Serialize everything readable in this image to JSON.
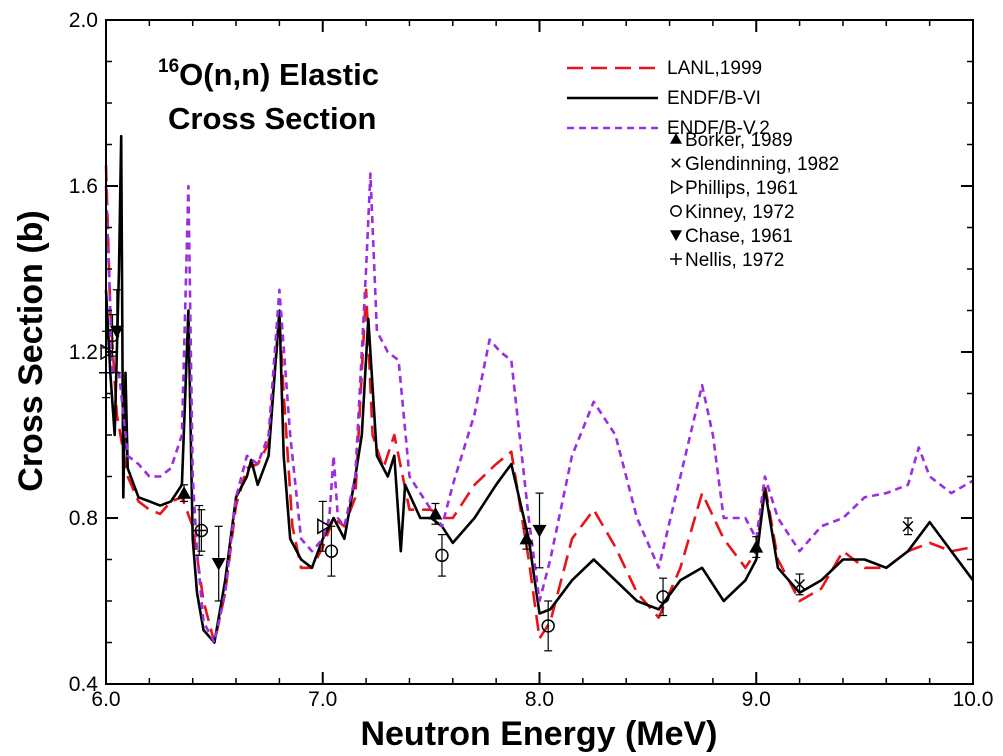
{
  "chart_data": {
    "type": "line",
    "title_line1_sup": "16",
    "title_line1": "O(n,n) Elastic",
    "title_line2": "Cross Section",
    "xlabel": "Neutron Energy (MeV)",
    "ylabel": "Cross Section (b)",
    "xlim": [
      6.0,
      10.0
    ],
    "ylim": [
      0.4,
      2.0
    ],
    "x_ticks": [
      "6.0",
      "7.0",
      "8.0",
      "9.0",
      "10.0"
    ],
    "y_ticks": [
      "0.4",
      "0.8",
      "1.2",
      "1.6",
      "2.0"
    ],
    "legend_position": "top-right",
    "series": [
      {
        "name": "LANL,1999",
        "color": "#e8141a",
        "style": "dashed",
        "x": [
          6.0,
          6.02,
          6.05,
          6.1,
          6.15,
          6.2,
          6.25,
          6.3,
          6.35,
          6.4,
          6.45,
          6.5,
          6.55,
          6.6,
          6.65,
          6.7,
          6.75,
          6.8,
          6.82,
          6.86,
          6.9,
          6.95,
          7.0,
          7.05,
          7.1,
          7.15,
          7.2,
          7.23,
          7.28,
          7.33,
          7.4,
          7.5,
          7.55,
          7.6,
          7.7,
          7.8,
          7.87,
          7.95,
          8.0,
          8.05,
          8.15,
          8.25,
          8.35,
          8.45,
          8.55,
          8.65,
          8.75,
          8.85,
          8.95,
          9.0,
          9.04,
          9.1,
          9.2,
          9.3,
          9.4,
          9.5,
          9.6,
          9.7,
          9.8,
          9.9,
          10.0
        ],
        "y": [
          1.65,
          1.3,
          1.05,
          0.9,
          0.84,
          0.82,
          0.81,
          0.84,
          0.85,
          0.78,
          0.6,
          0.5,
          0.62,
          0.83,
          0.92,
          0.93,
          0.98,
          1.28,
          1.1,
          0.78,
          0.68,
          0.68,
          0.73,
          0.8,
          0.78,
          0.85,
          1.35,
          1.0,
          0.92,
          1.0,
          0.82,
          0.82,
          0.8,
          0.8,
          0.88,
          0.93,
          0.96,
          0.7,
          0.51,
          0.55,
          0.75,
          0.82,
          0.73,
          0.62,
          0.56,
          0.68,
          0.86,
          0.75,
          0.68,
          0.72,
          0.88,
          0.7,
          0.6,
          0.63,
          0.72,
          0.68,
          0.68,
          0.72,
          0.74,
          0.72,
          0.73
        ]
      },
      {
        "name": "ENDF/B-VI",
        "color": "#000000",
        "style": "solid",
        "x": [
          6.0,
          6.02,
          6.04,
          6.06,
          6.07,
          6.08,
          6.09,
          6.1,
          6.15,
          6.2,
          6.25,
          6.3,
          6.35,
          6.38,
          6.4,
          6.42,
          6.45,
          6.5,
          6.55,
          6.6,
          6.65,
          6.67,
          6.7,
          6.75,
          6.8,
          6.82,
          6.85,
          6.9,
          6.95,
          7.0,
          7.05,
          7.1,
          7.15,
          7.18,
          7.21,
          7.25,
          7.3,
          7.33,
          7.36,
          7.38,
          7.45,
          7.5,
          7.55,
          7.6,
          7.7,
          7.8,
          7.87,
          7.95,
          8.0,
          8.05,
          8.15,
          8.25,
          8.35,
          8.45,
          8.55,
          8.65,
          8.75,
          8.85,
          8.95,
          9.0,
          9.04,
          9.1,
          9.2,
          9.3,
          9.4,
          9.5,
          9.6,
          9.7,
          9.8,
          9.9,
          10.0
        ],
        "y": [
          1.35,
          1.15,
          1.0,
          1.4,
          1.72,
          0.85,
          1.15,
          0.92,
          0.85,
          0.84,
          0.83,
          0.84,
          0.88,
          1.3,
          0.75,
          0.62,
          0.53,
          0.5,
          0.65,
          0.85,
          0.9,
          0.94,
          0.88,
          0.95,
          1.3,
          0.95,
          0.75,
          0.7,
          0.68,
          0.75,
          0.8,
          0.75,
          0.9,
          1.0,
          1.28,
          0.95,
          0.9,
          0.95,
          0.72,
          0.88,
          0.8,
          0.8,
          0.78,
          0.74,
          0.8,
          0.88,
          0.93,
          0.75,
          0.57,
          0.58,
          0.65,
          0.7,
          0.65,
          0.6,
          0.58,
          0.65,
          0.68,
          0.6,
          0.65,
          0.7,
          0.87,
          0.68,
          0.62,
          0.65,
          0.7,
          0.7,
          0.68,
          0.72,
          0.79,
          0.72,
          0.65
        ]
      },
      {
        "name": "ENDF/B-V.2",
        "color": "#9a2ee0",
        "style": "dashed",
        "x": [
          6.0,
          6.03,
          6.06,
          6.1,
          6.15,
          6.2,
          6.25,
          6.3,
          6.35,
          6.38,
          6.4,
          6.42,
          6.45,
          6.5,
          6.55,
          6.6,
          6.65,
          6.7,
          6.75,
          6.8,
          6.85,
          6.9,
          6.95,
          7.0,
          7.03,
          7.05,
          7.07,
          7.1,
          7.15,
          7.2,
          7.22,
          7.25,
          7.3,
          7.35,
          7.4,
          7.5,
          7.55,
          7.6,
          7.7,
          7.77,
          7.82,
          7.87,
          7.95,
          8.0,
          8.05,
          8.15,
          8.25,
          8.35,
          8.45,
          8.55,
          8.65,
          8.75,
          8.8,
          8.85,
          8.95,
          9.0,
          9.04,
          9.1,
          9.2,
          9.3,
          9.4,
          9.5,
          9.6,
          9.7,
          9.75,
          9.8,
          9.9,
          10.0
        ],
        "y": [
          1.6,
          1.15,
          1.15,
          0.95,
          0.93,
          0.9,
          0.9,
          0.92,
          1.0,
          1.6,
          0.9,
          0.72,
          0.55,
          0.5,
          0.62,
          0.85,
          0.95,
          0.93,
          1.0,
          1.35,
          1.0,
          0.75,
          0.72,
          0.75,
          0.8,
          0.95,
          0.8,
          0.78,
          0.9,
          1.4,
          1.63,
          1.25,
          1.2,
          1.18,
          0.9,
          0.82,
          0.78,
          0.88,
          1.05,
          1.23,
          1.2,
          1.18,
          0.8,
          0.6,
          0.7,
          0.95,
          1.08,
          1.0,
          0.8,
          0.68,
          0.9,
          1.12,
          1.0,
          0.8,
          0.8,
          0.75,
          0.9,
          0.8,
          0.72,
          0.78,
          0.8,
          0.85,
          0.86,
          0.88,
          0.97,
          0.9,
          0.86,
          0.89
        ]
      }
    ],
    "markers": [
      {
        "name": "Borker, 1989",
        "symbol": "triangle-up",
        "points": [
          [
            6.36,
            0.86,
            0.02
          ],
          [
            7.52,
            0.81,
            0.025
          ],
          [
            7.94,
            0.75,
            0.025
          ],
          [
            9.0,
            0.73,
            0.025
          ]
        ]
      },
      {
        "name": "Glendinning, 1982",
        "symbol": "x",
        "points": [
          [
            9.2,
            0.64,
            0.025
          ],
          [
            9.7,
            0.78,
            0.02
          ]
        ]
      },
      {
        "name": "Phillips, 1961",
        "symbol": "triangle-right",
        "points": [
          [
            6.0,
            1.2,
            0.05
          ],
          [
            7.0,
            0.78,
            0.06
          ]
        ]
      },
      {
        "name": "Kinney, 1972",
        "symbol": "circle",
        "points": [
          [
            6.03,
            1.24,
            0.05
          ],
          [
            6.44,
            0.77,
            0.05
          ],
          [
            7.04,
            0.72,
            0.06
          ],
          [
            7.55,
            0.71,
            0.05
          ],
          [
            8.04,
            0.54,
            0.06
          ],
          [
            8.57,
            0.61,
            0.045
          ]
        ]
      },
      {
        "name": "Chase, 1961",
        "symbol": "triangle-down",
        "points": [
          [
            6.05,
            1.25,
            0.1
          ],
          [
            6.52,
            0.69,
            0.09
          ],
          [
            8.0,
            0.77,
            0.09
          ]
        ]
      },
      {
        "name": "Nellis, 1972",
        "symbol": "plus",
        "points": [
          [
            6.0,
            1.15,
            0.06
          ],
          [
            6.43,
            0.77,
            0.06
          ]
        ]
      }
    ]
  }
}
